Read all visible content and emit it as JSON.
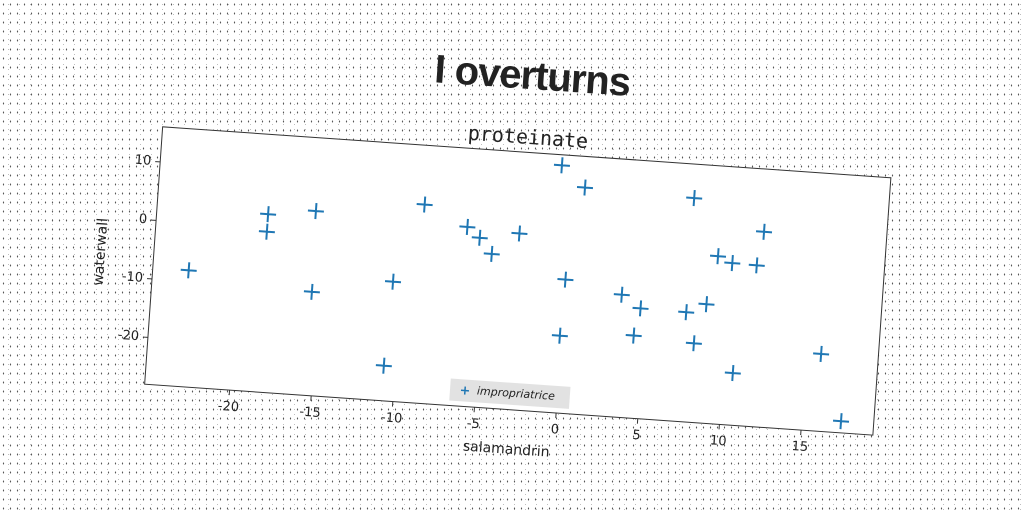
{
  "chart_data": {
    "type": "scatter",
    "title": "I overturns",
    "subtitle": "proteinate",
    "xlabel": "salamandrin",
    "ylabel": "waterwall",
    "series": [
      {
        "name": "impropriatrice",
        "color": "#1f77b4",
        "x": [
          -23,
          -18.4,
          -18.4,
          -15.5,
          -15.4,
          -10.7,
          -10.5,
          -8.9,
          -6.2,
          -5.4,
          -4.6,
          -3.0,
          -0.7,
          0.8,
          0,
          -0.1,
          3.5,
          4.7,
          4.4,
          7.5,
          7.5,
          8.7,
          8.1,
          9.2,
          10.1,
          11.6,
          11.9,
          10.6,
          15.9,
          17.4
        ],
        "values": [
          -8.1,
          2.4,
          -0.6,
          3.5,
          -10.3,
          -22,
          -7.6,
          5.9,
          2.6,
          0.9,
          -1.7,
          2.1,
          14.2,
          10.7,
          -5.2,
          -14.8,
          -7.1,
          -9.2,
          -13.9,
          10.2,
          -9.3,
          -7.7,
          -14.5,
          0.6,
          -0.4,
          -0.5,
          5.3,
          -19.1,
          -14.8,
          -26
        ]
      }
    ],
    "xlim": [
      -25.2,
      19.4
    ],
    "ylim": [
      -28,
      16
    ],
    "xticks": [
      -20,
      -15,
      -10,
      -5,
      0,
      5,
      10,
      15
    ],
    "yticks": [
      -20,
      -10,
      0,
      10
    ],
    "legend": "lower center"
  }
}
